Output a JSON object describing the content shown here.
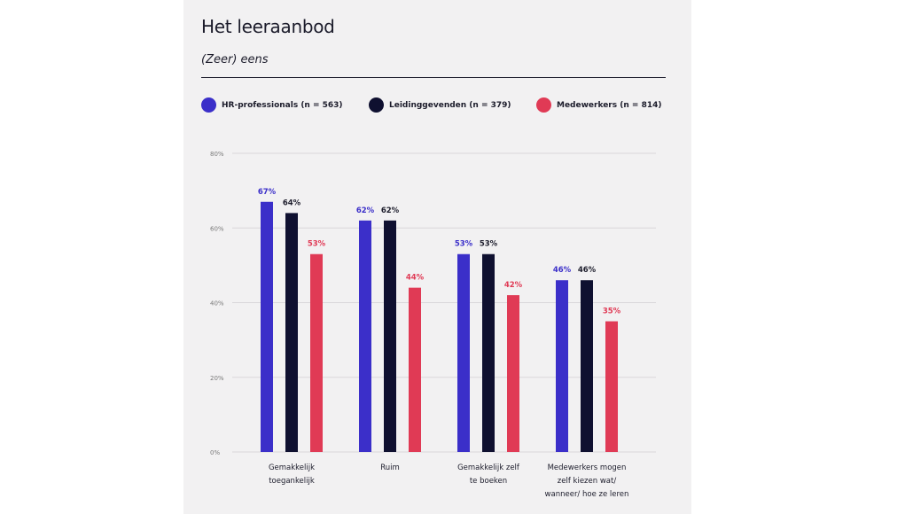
{
  "header": {
    "title": "Het leeraanbod",
    "subtitle": "(Zeer) eens"
  },
  "colors": {
    "hr": "#3b2fc9",
    "leiding": "#0f1030",
    "medewerkers": "#e03a55",
    "grid": "#d9d7da",
    "axis_text": "#7a7a7a",
    "text": "#1c1c2b"
  },
  "chart_data": {
    "type": "bar",
    "title": "Het leeraanbod",
    "subtitle": "(Zeer) eens",
    "xlabel": "",
    "ylabel": "",
    "ylim": [
      0,
      80
    ],
    "yticks": [
      0,
      20,
      40,
      60,
      80
    ],
    "ytick_labels": [
      "0%",
      "20%",
      "40%",
      "60%",
      "80%"
    ],
    "grid": true,
    "legend_position": "top",
    "categories": [
      [
        "Gemakkelijk",
        "toegankelijk"
      ],
      [
        "Ruim"
      ],
      [
        "Gemakkelijk zelf",
        "te boeken"
      ],
      [
        "Medewerkers mogen",
        "zelf kiezen wat/",
        "wanneer/ hoe ze leren"
      ]
    ],
    "series": [
      {
        "name": "HR-professionals (n = 563)",
        "values": [
          67,
          62,
          53,
          46
        ],
        "labels": [
          "67%",
          "62%",
          "53%",
          "46%"
        ],
        "color": "#3b2fc9"
      },
      {
        "name": "Leidinggevenden (n = 379)",
        "values": [
          64,
          62,
          53,
          46
        ],
        "labels": [
          "64%",
          "62%",
          "53%",
          "46%"
        ],
        "color": "#0f1030"
      },
      {
        "name": "Medewerkers (n = 814)",
        "values": [
          53,
          44,
          42,
          35
        ],
        "labels": [
          "53%",
          "44%",
          "42%",
          "35%"
        ],
        "color": "#e03a55"
      }
    ]
  }
}
